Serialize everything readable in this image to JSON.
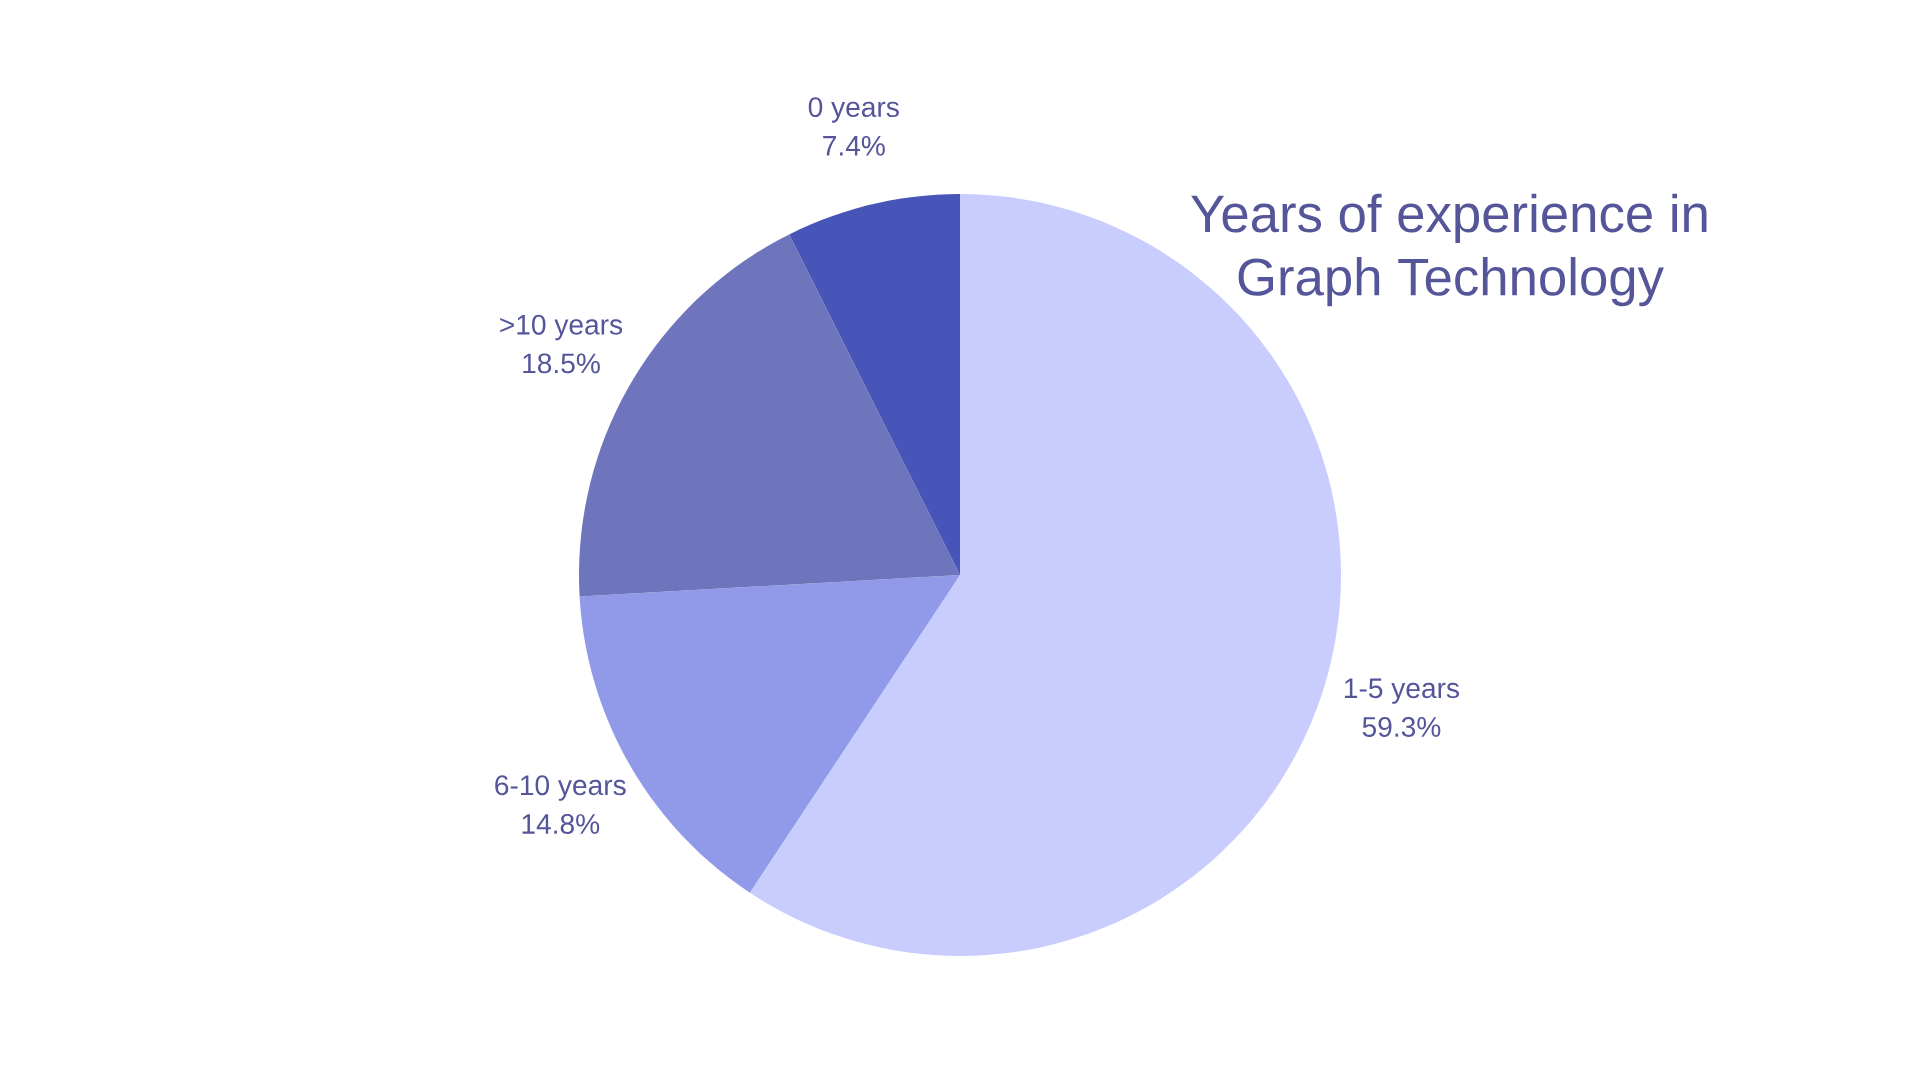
{
  "chart_data": {
    "type": "pie",
    "title": "Years of experience in Graph Technology",
    "categories": [
      "1-5 years",
      "6-10 years",
      ">10 years",
      "0 years"
    ],
    "values": [
      59.3,
      14.8,
      18.5,
      7.4
    ],
    "value_labels": [
      "59.3%",
      "14.8%",
      "18.5%",
      "7.4%"
    ],
    "colors": [
      "#c8cdfe",
      "#919ae8",
      "#6e75bc",
      "#4855b8"
    ]
  }
}
